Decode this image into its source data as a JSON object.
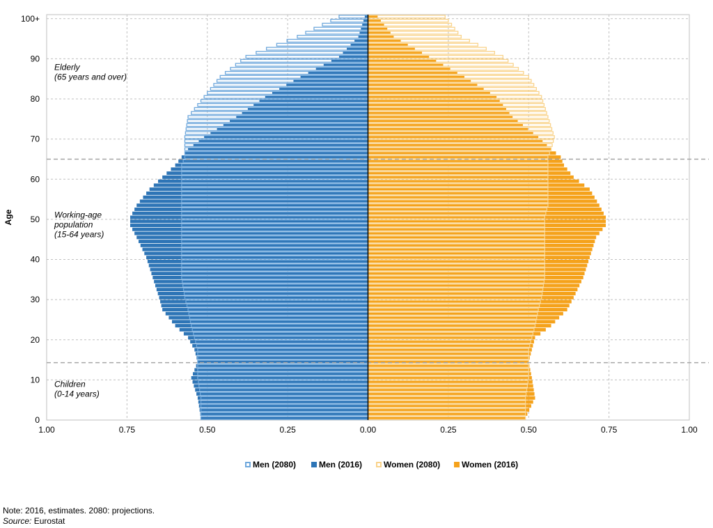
{
  "chart_data": {
    "type": "bar",
    "orientation": "horizontal",
    "title": "",
    "xlabel": "",
    "ylabel": "Age",
    "xlim": [
      -1.0,
      1.0
    ],
    "x_ticks": [
      -1.0,
      -0.75,
      -0.5,
      -0.25,
      0.0,
      0.25,
      0.5,
      0.75,
      1.0
    ],
    "x_tick_labels": [
      "1.00",
      "0.75",
      "0.50",
      "0.25",
      "0.00",
      "0.25",
      "0.50",
      "0.75",
      "1.00"
    ],
    "y_ticks": [
      0,
      10,
      20,
      30,
      40,
      50,
      60,
      70,
      80,
      90,
      100
    ],
    "y_tick_labels": [
      "0",
      "10",
      "20",
      "30",
      "40",
      "50",
      "60",
      "70",
      "80",
      "90",
      "100+"
    ],
    "grid": true,
    "legend_position": "bottom",
    "value_note": "values are % of total population by single year of age; men plotted to the left",
    "colors": {
      "men_2016": "#2E75B6",
      "women_2016": "#F5A21B",
      "men_2080": "#6FA8DC",
      "women_2080": "#F9D38B",
      "grid": "#BFBFBF",
      "dashed": "#A6A6A6",
      "center": "#000000"
    },
    "age_keypoints": [
      0,
      5,
      10,
      14,
      17,
      20,
      23,
      27,
      30,
      35,
      40,
      45,
      48,
      50,
      53,
      57,
      60,
      63,
      65,
      67,
      70,
      75,
      80,
      85,
      90,
      95,
      100
    ],
    "series": [
      {
        "name": "Men (2080)",
        "style": "outline",
        "values": [
          0.52,
          0.52,
          0.53,
          0.53,
          0.53,
          0.54,
          0.55,
          0.56,
          0.57,
          0.58,
          0.58,
          0.58,
          0.58,
          0.58,
          0.58,
          0.58,
          0.58,
          0.58,
          0.57,
          0.57,
          0.57,
          0.56,
          0.51,
          0.46,
          0.38,
          0.22,
          0.09
        ]
      },
      {
        "name": "Men (2016)",
        "style": "solid",
        "values": [
          0.52,
          0.53,
          0.55,
          0.53,
          0.54,
          0.56,
          0.6,
          0.64,
          0.65,
          0.67,
          0.69,
          0.72,
          0.74,
          0.74,
          0.72,
          0.68,
          0.64,
          0.6,
          0.58,
          0.56,
          0.51,
          0.41,
          0.32,
          0.21,
          0.09,
          0.03,
          0.01
        ]
      },
      {
        "name": "Women (2080)",
        "style": "outline",
        "values": [
          0.49,
          0.49,
          0.5,
          0.5,
          0.5,
          0.51,
          0.52,
          0.53,
          0.54,
          0.55,
          0.55,
          0.55,
          0.55,
          0.55,
          0.56,
          0.56,
          0.56,
          0.56,
          0.56,
          0.57,
          0.58,
          0.56,
          0.54,
          0.5,
          0.42,
          0.29,
          0.24
        ]
      },
      {
        "name": "Women (2016)",
        "style": "solid",
        "values": [
          0.49,
          0.52,
          0.51,
          0.5,
          0.51,
          0.52,
          0.57,
          0.62,
          0.64,
          0.67,
          0.69,
          0.71,
          0.74,
          0.74,
          0.72,
          0.69,
          0.64,
          0.61,
          0.6,
          0.57,
          0.53,
          0.45,
          0.4,
          0.3,
          0.19,
          0.08,
          0.03
        ]
      }
    ],
    "dashed_lines_at_age": [
      14.3,
      65
    ],
    "annotations": [
      {
        "lines": [
          "Elderly",
          "(65 years and over)"
        ],
        "at_age": 86
      },
      {
        "lines": [
          "Working-age",
          "population",
          "(15-64 years)"
        ],
        "at_age": 48
      },
      {
        "lines": [
          "Children",
          "(0-14 years)"
        ],
        "at_age": 7
      }
    ]
  },
  "legend": [
    {
      "label": "Men (2080)",
      "key": "men_2080",
      "style": "outline"
    },
    {
      "label": "Men (2016)",
      "key": "men_2016",
      "style": "solid"
    },
    {
      "label": "Women (2080)",
      "key": "women_2080",
      "style": "outline"
    },
    {
      "label": "Women (2016)",
      "key": "women_2016",
      "style": "solid"
    }
  ],
  "notes": {
    "note": "Note: 2016, estimates. 2080: projections.",
    "source_label": "Source:",
    "source_value": "Eurostat"
  }
}
